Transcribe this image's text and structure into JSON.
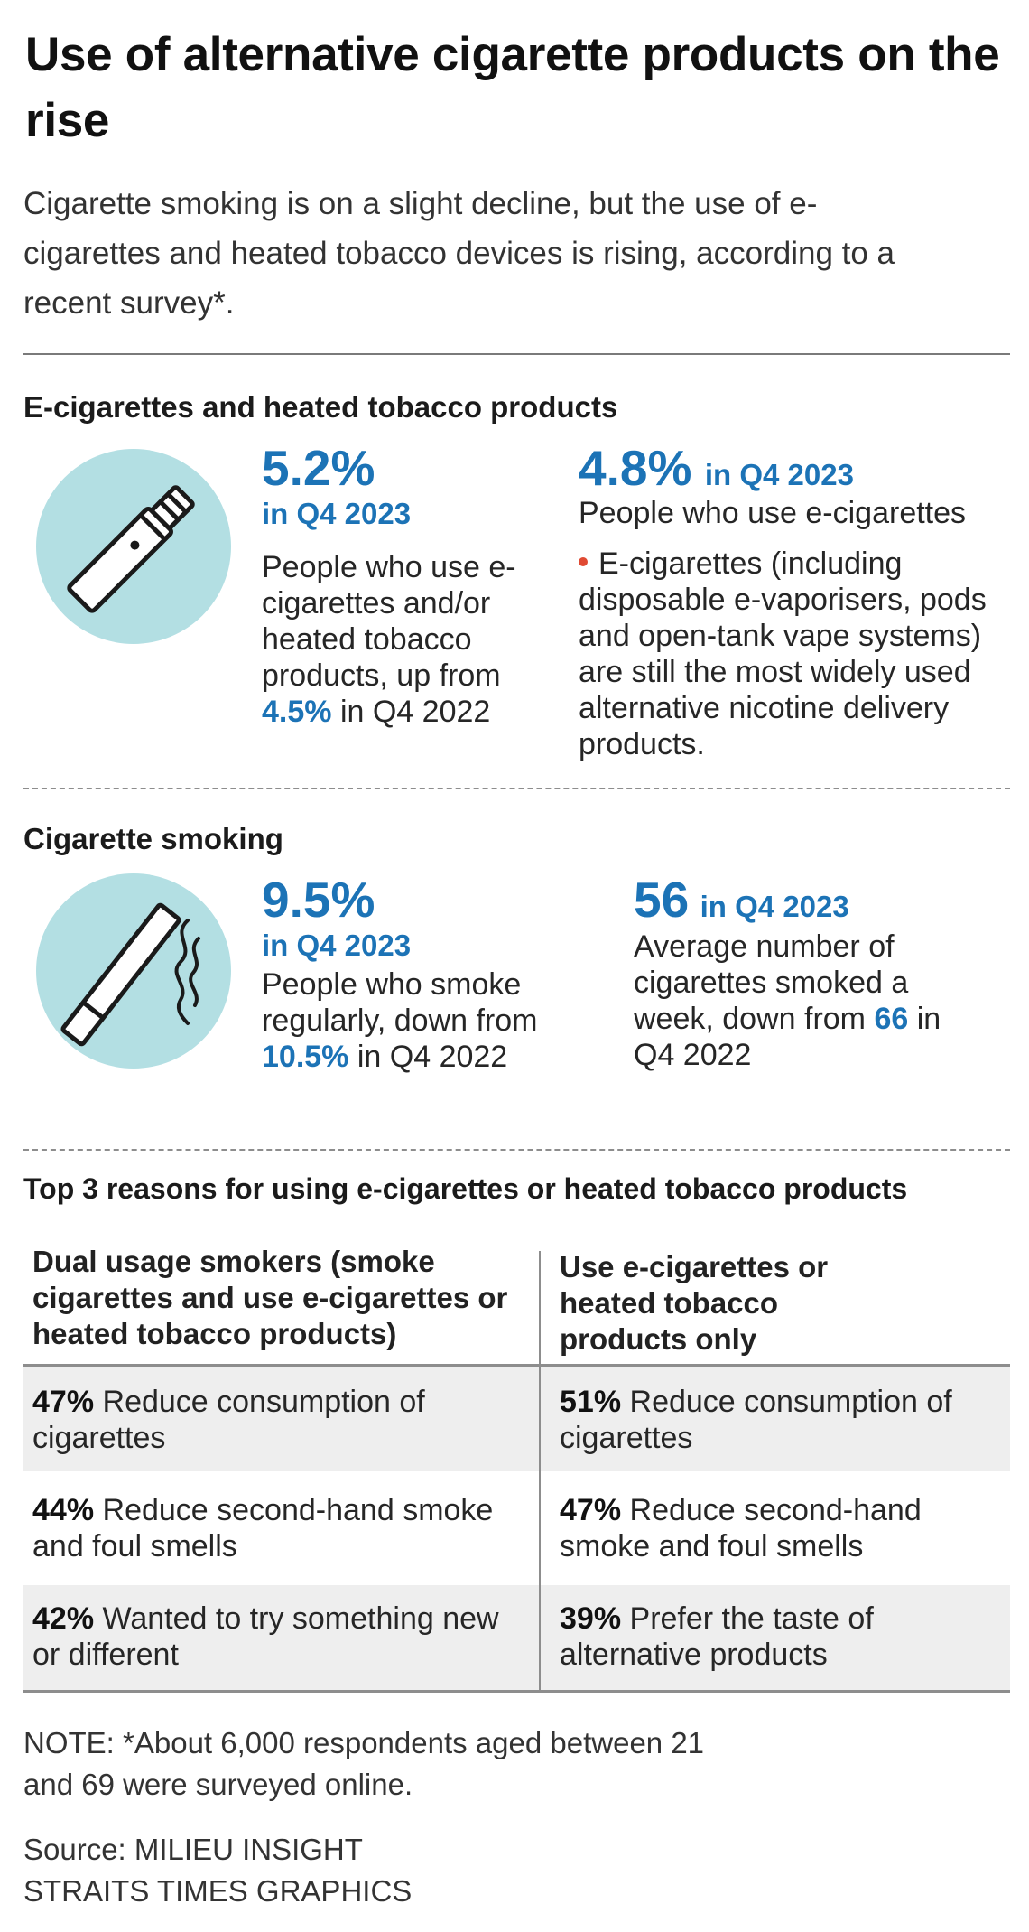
{
  "title": "Use of alternative cigarette products on the rise",
  "intro": "Cigarette smoking is on a slight decline, but the use of e-cigarettes and heated tobacco devices is rising, according to a recent survey*.",
  "ecig_section": {
    "heading": "E-cigarettes and heated tobacco products",
    "icon": "e-cigarette-icon",
    "stat1": {
      "value": "5.2%",
      "period": "in Q4 2023",
      "text_before": "People who use e-cigarettes and/or heated tobacco products, up from",
      "prev_value": "4.5%",
      "text_after": "in Q4 2022"
    },
    "stat2": {
      "value": "4.8%",
      "period": "in Q4 2023",
      "label": "People who use e-cigarettes",
      "bullet": "E-cigarettes (including disposable e-vaporisers, pods and open-tank vape systems) are still the most widely used alternative nicotine delivery products."
    }
  },
  "smoking_section": {
    "heading": "Cigarette smoking",
    "icon": "cigarette-icon",
    "stat1": {
      "value": "9.5%",
      "period": "in Q4 2023",
      "text_before": "People who smoke regularly, down from",
      "prev_value": "10.5%",
      "text_after": "in Q4 2022"
    },
    "stat2": {
      "value": "56",
      "period": "in Q4 2023",
      "text_before": "Average number of cigarettes smoked a week, down from",
      "prev_value": "66",
      "text_after": "in Q4 2022"
    }
  },
  "reasons": {
    "heading": "Top 3 reasons for using e-cigarettes or heated tobacco products",
    "col1_header": "Dual usage smokers (smoke cigarettes and use e-cigarettes or heated tobacco products)",
    "col2_header": "Use e-cigarettes or heated tobacco products only",
    "rows": [
      {
        "c1_pct": "47%",
        "c1_text": "Reduce consumption of cigarettes",
        "c2_pct": "51%",
        "c2_text": "Reduce consumption of cigarettes"
      },
      {
        "c1_pct": "44%",
        "c1_text": "Reduce second-hand smoke and foul smells",
        "c2_pct": "47%",
        "c2_text": "Reduce second-hand smoke and foul smells"
      },
      {
        "c1_pct": "42%",
        "c1_text": "Wanted to try something new or different",
        "c2_pct": "39%",
        "c2_text": "Prefer the taste of alternative products"
      }
    ]
  },
  "note": "NOTE: *About 6,000 respondents aged between 21 and 69 were surveyed online.",
  "source_line1": "Source: MILIEU INSIGHT",
  "source_line2": "STRAITS TIMES GRAPHICS",
  "colors": {
    "accent_blue": "#1c73b6",
    "icon_circle": "#b3dfe3",
    "bullet_red": "#e04a33",
    "row_shade": "#eeeeee"
  }
}
